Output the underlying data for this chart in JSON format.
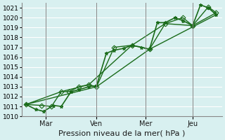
{
  "xlabel": "Pression niveau de la mer( hPa )",
  "ylim": [
    1010,
    1021.5
  ],
  "yticks": [
    1010,
    1011,
    1012,
    1013,
    1014,
    1015,
    1016,
    1017,
    1018,
    1019,
    1020,
    1021
  ],
  "bg_color": "#d8f0f0",
  "grid_color": "#ffffff",
  "line_color": "#1a6b1a",
  "marker_color": "#1a6b1a",
  "day_lines": [
    0.12,
    0.38,
    0.63,
    0.87
  ],
  "day_labels": [
    "Mar",
    "Ven",
    "Mer",
    "Jeu"
  ],
  "series": [
    {
      "x": [
        0.02,
        0.07,
        0.11,
        0.16,
        0.2,
        0.25,
        0.29,
        0.34,
        0.38,
        0.43,
        0.47,
        0.52,
        0.56,
        0.61,
        0.65,
        0.69,
        0.73,
        0.78,
        0.82,
        0.87,
        0.91,
        0.95,
        0.99
      ],
      "y": [
        1011.2,
        1010.7,
        1010.5,
        1011.1,
        1011.0,
        1012.5,
        1012.7,
        1013.0,
        1013.1,
        1016.4,
        1016.7,
        1016.9,
        1017.2,
        1017.0,
        1016.8,
        1019.5,
        1019.5,
        1020.0,
        1019.7,
        1019.2,
        1021.3,
        1021.0,
        1020.3
      ],
      "marker": "*",
      "lw": 1.2
    },
    {
      "x": [
        0.02,
        0.1,
        0.15,
        0.2,
        0.24,
        0.29,
        0.34,
        0.38,
        0.47,
        0.56,
        0.65,
        0.73,
        0.82,
        0.87,
        0.95,
        0.99
      ],
      "y": [
        1011.2,
        1011.1,
        1011.0,
        1012.5,
        1012.5,
        1013.0,
        1013.2,
        1013.0,
        1017.0,
        1017.2,
        1016.8,
        1019.4,
        1020.0,
        1019.2,
        1021.1,
        1020.5
      ],
      "marker": "D",
      "lw": 1.0
    },
    {
      "x": [
        0.02,
        0.38,
        0.65,
        0.99
      ],
      "y": [
        1011.2,
        1013.0,
        1016.8,
        1020.3
      ],
      "marker": null,
      "lw": 1.0
    },
    {
      "x": [
        0.02,
        0.2,
        0.34,
        0.56,
        0.73,
        0.87,
        0.99
      ],
      "y": [
        1011.2,
        1012.5,
        1013.2,
        1017.2,
        1019.4,
        1019.2,
        1020.5
      ],
      "marker": null,
      "lw": 1.0
    }
  ]
}
